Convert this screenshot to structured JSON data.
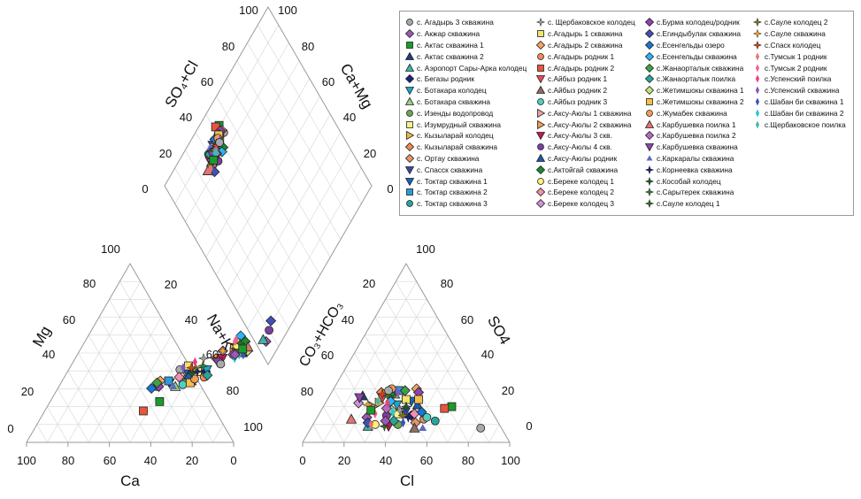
{
  "chart_data": {
    "type": "scatter",
    "subtype": "piper-diagram",
    "title": "",
    "triangles": {
      "cations": {
        "axis_labels": {
          "left": "Mg",
          "bottom": "Ca",
          "right": "Na+K"
        },
        "left_ticks": [
          "0",
          "20",
          "40",
          "60",
          "80",
          "100"
        ],
        "bottom_ticks": [
          "100",
          "80",
          "60",
          "40",
          "20",
          "0"
        ],
        "right_ticks": [
          "20",
          "40",
          "60",
          "80",
          "100"
        ]
      },
      "anions": {
        "axis_labels": {
          "left": "CO₃+HCO₃",
          "bottom": "Cl",
          "right": "SO4"
        },
        "left_ticks": [
          "80",
          "60",
          "40",
          "20"
        ],
        "bottom_ticks": [
          "0",
          "20",
          "40",
          "60",
          "80",
          "100"
        ],
        "right_ticks": [
          "0",
          "20",
          "40",
          "60",
          "80",
          "100"
        ]
      },
      "diamond": {
        "axis_labels": {
          "left": "SO₄+Cl",
          "right": "Ca+Mg"
        },
        "left_ticks": [
          "0",
          "20",
          "40",
          "60",
          "80",
          "100"
        ],
        "right_ticks": [
          "0",
          "20",
          "40",
          "60",
          "80",
          "100"
        ]
      }
    },
    "colors": {
      "grid": "#d6d6d6",
      "frame": "#9a9a9a",
      "axis_text": "#111111"
    },
    "points": {
      "cations": [
        [
          1,
          34
        ],
        [
          2,
          49
        ],
        [
          3,
          17
        ],
        [
          4,
          43
        ],
        [
          5,
          50
        ],
        [
          6,
          33
        ],
        [
          7,
          34
        ],
        [
          8,
          25
        ],
        [
          9,
          29
        ],
        [
          10,
          33
        ],
        [
          11,
          45
        ],
        [
          12,
          40
        ],
        [
          13,
          32
        ],
        [
          14,
          27
        ],
        [
          15,
          33
        ],
        [
          16,
          28
        ],
        [
          17,
          25
        ],
        [
          18,
          40
        ],
        [
          19,
          36
        ],
        [
          20,
          28
        ],
        [
          21,
          30
        ],
        [
          22,
          12
        ],
        [
          23,
          44
        ],
        [
          24,
          28
        ],
        [
          25,
          26
        ],
        [
          26,
          43
        ],
        [
          27,
          43
        ],
        [
          28,
          40
        ],
        [
          29,
          55
        ],
        [
          30,
          31
        ],
        [
          31,
          49
        ],
        [
          32,
          47
        ],
        [
          33,
          30
        ],
        [
          34,
          44
        ],
        [
          35,
          25
        ],
        [
          36,
          60
        ],
        [
          37,
          24
        ],
        [
          38,
          52
        ],
        [
          39,
          27
        ],
        [
          40,
          31
        ],
        [
          41,
          44
        ],
        [
          42,
          27
        ],
        [
          43,
          29
        ],
        [
          44,
          46
        ],
        [
          45,
          42
        ],
        [
          46,
          38
        ],
        [
          47,
          25
        ],
        [
          48,
          33
        ],
        [
          49,
          32
        ],
        [
          50,
          36
        ],
        [
          51,
          48
        ],
        [
          52,
          35
        ],
        [
          53,
          44
        ],
        [
          54,
          35
        ],
        [
          55,
          49
        ],
        [
          56,
          50
        ],
        [
          57,
          38
        ],
        [
          58,
          35
        ],
        [
          59,
          42
        ],
        [
          60,
          40
        ],
        [
          61,
          42
        ],
        [
          62,
          37
        ],
        [
          63,
          42
        ],
        [
          64,
          45
        ]
      ],
      "anions": [
        [
          1,
          10
        ],
        [
          2,
          62
        ],
        [
          3,
          18
        ],
        [
          4,
          58
        ],
        [
          5,
          64
        ],
        [
          6,
          40
        ],
        [
          7,
          44
        ],
        [
          8,
          42
        ],
        [
          9,
          49
        ],
        [
          10,
          46
        ],
        [
          11,
          52
        ],
        [
          12,
          48
        ],
        [
          13,
          40
        ],
        [
          14,
          42
        ],
        [
          15,
          36
        ],
        [
          16,
          39
        ],
        [
          17,
          30
        ],
        [
          18,
          44
        ],
        [
          19,
          38
        ],
        [
          20,
          30
        ],
        [
          21,
          35
        ],
        [
          22,
          22
        ],
        [
          23,
          49
        ],
        [
          24,
          42
        ],
        [
          25,
          33
        ],
        [
          26,
          56
        ],
        [
          27,
          44
        ],
        [
          28,
          54
        ],
        [
          29,
          52
        ],
        [
          30,
          34
        ],
        [
          31,
          44
        ],
        [
          32,
          60
        ],
        [
          33,
          38
        ],
        [
          34,
          62
        ],
        [
          35,
          30
        ],
        [
          36,
          63
        ],
        [
          37,
          34
        ],
        [
          38,
          46
        ],
        [
          39,
          36
        ],
        [
          40,
          50
        ],
        [
          41,
          48
        ],
        [
          42,
          32
        ],
        [
          43,
          42
        ],
        [
          44,
          70
        ],
        [
          45,
          50
        ],
        [
          46,
          60
        ],
        [
          47,
          38
        ],
        [
          48,
          42
        ],
        [
          49,
          40
        ],
        [
          50,
          46
        ],
        [
          51,
          56
        ],
        [
          52,
          44
        ],
        [
          53,
          58
        ],
        [
          54,
          48
        ],
        [
          55,
          62
        ],
        [
          56,
          57
        ],
        [
          57,
          48
        ],
        [
          58,
          40
        ],
        [
          59,
          46
        ],
        [
          60,
          48
        ],
        [
          61,
          52
        ],
        [
          62,
          44
        ],
        [
          63,
          54
        ],
        [
          64,
          58
        ]
      ]
    }
  },
  "legend": {
    "items": [
      {
        "label": "с. Агадырь 3 скважина",
        "marker": "circle",
        "color": "#a7a9ac"
      },
      {
        "label": "с. Акжар скважина",
        "marker": "diamond",
        "color": "#9b59b6"
      },
      {
        "label": "с. Актас скважина 1",
        "marker": "square",
        "color": "#1a9c2c"
      },
      {
        "label": "с. Актас скважина 2",
        "marker": "triangle",
        "color": "#1f3f78"
      },
      {
        "label": "с. Аэропорт Сары-Арка колодец",
        "marker": "triangle",
        "color": "#3fb5a8"
      },
      {
        "label": "с. Бегазы родник",
        "marker": "diamond",
        "color": "#1a237e"
      },
      {
        "label": "с. Ботакара колодец",
        "marker": "triangle-down",
        "color": "#1ea6c8"
      },
      {
        "label": "с. Ботакара скважина",
        "marker": "triangle",
        "color": "#9ad47a"
      },
      {
        "label": "с. Изенды водопровод",
        "marker": "circle",
        "color": "#6aa84f"
      },
      {
        "label": "с. Изумрудный скважина",
        "marker": "square",
        "color": "#f6f28a"
      },
      {
        "label": "с. Кызыларай колодец",
        "marker": "triangle-right",
        "color": "#f4b43d"
      },
      {
        "label": "с. Кызыларай скважина",
        "marker": "diamond",
        "color": "#f08a4b"
      },
      {
        "label": "с. Ортау скважина",
        "marker": "diamond",
        "color": "#e8956b"
      },
      {
        "label": "с. Спасск скважина",
        "marker": "triangle-down",
        "color": "#3949ab"
      },
      {
        "label": "с. Токтар скважина 1",
        "marker": "triangle-down",
        "color": "#1565c0"
      },
      {
        "label": "с. Токтар скважина 2",
        "marker": "square",
        "color": "#2e9bd6"
      },
      {
        "label": "с. Токтар скважина 3",
        "marker": "circle",
        "color": "#26a69a"
      },
      {
        "label": "с. Щербаковское колодец",
        "marker": "star",
        "color": "#9e9e9e"
      },
      {
        "label": "с.Агадырь 1 скважина",
        "marker": "square",
        "color": "#f1e36b"
      },
      {
        "label": "с.Агадырь 2 скважина",
        "marker": "diamond",
        "color": "#f4a261"
      },
      {
        "label": "с.Агадырь родник 1",
        "marker": "circle",
        "color": "#f28b5b"
      },
      {
        "label": "с.Агадырь родник 2",
        "marker": "square",
        "color": "#e8553c"
      },
      {
        "label": "с.Айбыз родник 1",
        "marker": "triangle-down",
        "color": "#e74c5e"
      },
      {
        "label": "с.Айбыз родник 2",
        "marker": "triangle",
        "color": "#8d6e63"
      },
      {
        "label": "с.Айбыз родник 3",
        "marker": "circle",
        "color": "#4dd0c0"
      },
      {
        "label": "с.Аксу-Аюлы 1 скважина",
        "marker": "triangle-right",
        "color": "#e8a2a0"
      },
      {
        "label": "с.Аксу-Аюлы 2 скважина",
        "marker": "triangle-right",
        "color": "#f19a50"
      },
      {
        "label": "с.Аксу-Аюлы 3 скв.",
        "marker": "triangle-down",
        "color": "#c2185b"
      },
      {
        "label": "с.Аксу-Аюлы 4 скв.",
        "marker": "circle",
        "color": "#7b3fa0"
      },
      {
        "label": "с.Аксу-Аюлы родник",
        "marker": "triangle",
        "color": "#1e5aa8"
      },
      {
        "label": "с.Актойгай скважина",
        "marker": "diamond",
        "color": "#1b8a2e"
      },
      {
        "label": "с.Береке колодец 1",
        "marker": "circle",
        "color": "#fff176"
      },
      {
        "label": "с.Береке колодец 2",
        "marker": "diamond",
        "color": "#f48fb1"
      },
      {
        "label": "с.Береке колодец 3",
        "marker": "diamond",
        "color": "#ce93d8"
      },
      {
        "label": "с.Бурма колодец/родник",
        "marker": "diamond",
        "color": "#8e44ad"
      },
      {
        "label": "с.Егиндыбулак скважина",
        "marker": "diamond",
        "color": "#3f51b5"
      },
      {
        "label": "с.Есенгельды озеро",
        "marker": "diamond",
        "color": "#1976d2"
      },
      {
        "label": "с.Есенгельды скважина",
        "marker": "diamond",
        "color": "#29b6f6"
      },
      {
        "label": "с.Жанаорталык скважина",
        "marker": "diamond",
        "color": "#43a047"
      },
      {
        "label": "с.Жанаорталык поилка",
        "marker": "diamond",
        "color": "#26a69a"
      },
      {
        "label": "с.Жетимшокы скважина 1",
        "marker": "diamond",
        "color": "#c5e17a"
      },
      {
        "label": "с.Жетимшокы скважина 2",
        "marker": "square",
        "color": "#f5c04a"
      },
      {
        "label": "с.Жумабек скважина",
        "marker": "circle",
        "color": "#f39c5a"
      },
      {
        "label": "с.Карбушевка поилка 1",
        "marker": "triangle",
        "color": "#e57373"
      },
      {
        "label": "с.Карбушевка поилка 2",
        "marker": "diamond",
        "color": "#ba68c8"
      },
      {
        "label": "с.Карбушевка скважина",
        "marker": "triangle-down",
        "color": "#8e44ad"
      },
      {
        "label": "с.Каркаралы скважина",
        "marker": "triangle-sm",
        "color": "#5c6bc0"
      },
      {
        "label": "с.Корнеевка скважина",
        "marker": "star",
        "color": "#1a237e"
      },
      {
        "label": "с.Кособай колодец",
        "marker": "star",
        "color": "#1b5e20"
      },
      {
        "label": "с.Сарытерек скважина",
        "marker": "star",
        "color": "#2e7d32"
      },
      {
        "label": "с.Сауле колодец 1",
        "marker": "star",
        "color": "#33691e"
      },
      {
        "label": "с.Сауле колодец 2",
        "marker": "star",
        "color": "#827717"
      },
      {
        "label": "с.Сауле скважина",
        "marker": "star",
        "color": "#f9a825"
      },
      {
        "label": "с.Спаск колодец",
        "marker": "star",
        "color": "#d84315"
      },
      {
        "label": "с.Тумсык 1 родник",
        "marker": "thin-diamond",
        "color": "#e57373"
      },
      {
        "label": "с.Тумсык 2 родник",
        "marker": "thin-diamond",
        "color": "#f06292"
      },
      {
        "label": "с.Успенский поилка",
        "marker": "thin-diamond",
        "color": "#ec407a"
      },
      {
        "label": "с.Успенский скважина",
        "marker": "thin-diamond",
        "color": "#7e57c2"
      },
      {
        "label": "с.Шабан би скважина 1",
        "marker": "thin-diamond",
        "color": "#3f51b5"
      },
      {
        "label": "с.Шабан би скважина 2",
        "marker": "thin-diamond",
        "color": "#26c6da"
      },
      {
        "label": "с.Щербаковское поилка",
        "marker": "thin-diamond",
        "color": "#4db6ac"
      }
    ]
  }
}
